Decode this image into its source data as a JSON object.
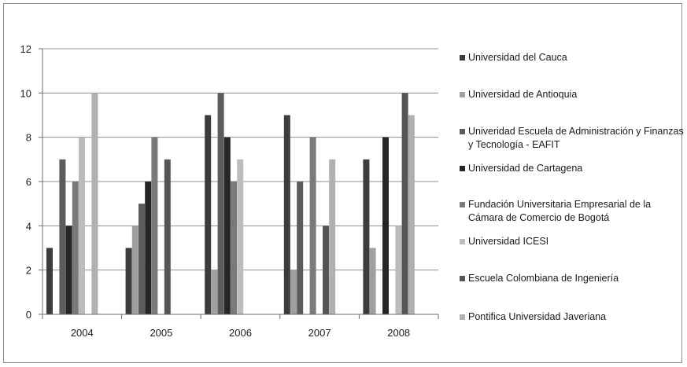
{
  "chart_data": {
    "type": "bar",
    "categories": [
      "2004",
      "2005",
      "2006",
      "2007",
      "2008"
    ],
    "ylim": [
      0,
      12
    ],
    "yticks": [
      0,
      2,
      4,
      6,
      8,
      10,
      12
    ],
    "grid": true,
    "legend_position": "right",
    "series": [
      {
        "name": "Universidad del Cauca",
        "color": "#3c3c3c",
        "values": [
          3,
          3,
          9,
          9,
          7
        ]
      },
      {
        "name": "Universidad de Antioquia",
        "color": "#a0a0a0",
        "values": [
          0,
          4,
          2,
          2,
          3
        ]
      },
      {
        "name": "Univeridad Escuela de Administración y Finanzas y Tecnología - EAFIT",
        "color": "#5c5c5c",
        "values": [
          7,
          5,
          10,
          6,
          0
        ]
      },
      {
        "name": "Universidad de Cartagena",
        "color": "#262626",
        "values": [
          4,
          6,
          8,
          0,
          8
        ]
      },
      {
        "name": "Fundación Universitaria Empresarial de la Cámara de Comercio de Bogotá",
        "color": "#7a7a7a",
        "values": [
          6,
          8,
          6,
          8,
          0
        ]
      },
      {
        "name": "Universidad ICESI",
        "color": "#bcbcbc",
        "values": [
          8,
          0,
          7,
          0,
          4
        ]
      },
      {
        "name": "Escuela Colombiana de Ingeniería",
        "color": "#555555",
        "values": [
          0,
          7,
          0,
          4,
          10
        ]
      },
      {
        "name": "Pontifica Universidad Javeriana",
        "color": "#b0b0b0",
        "values": [
          10,
          0,
          0,
          7,
          9
        ]
      }
    ]
  }
}
